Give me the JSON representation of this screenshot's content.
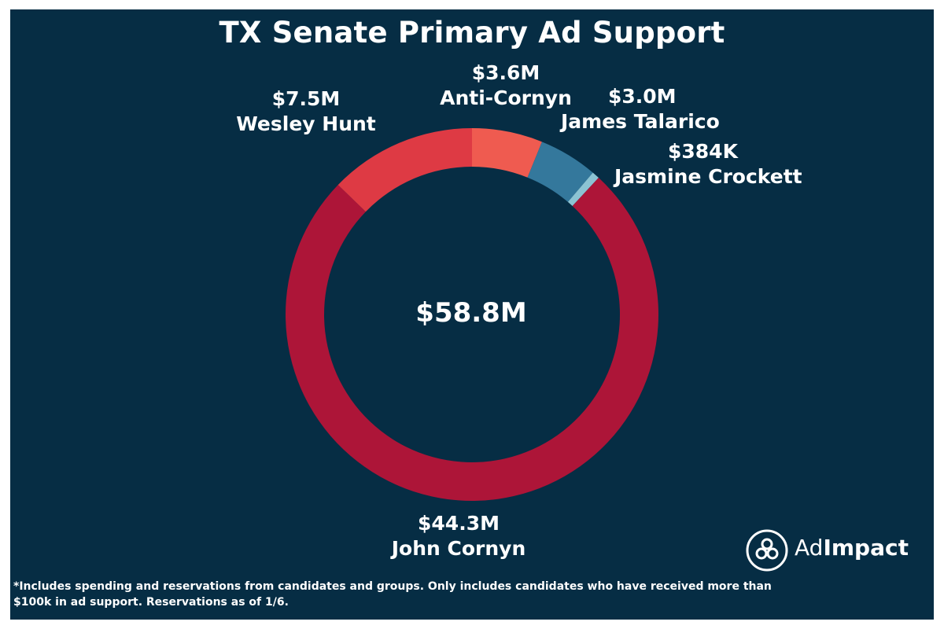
{
  "chart_data": {
    "type": "pie",
    "title": "TX Senate Primary Ad Support",
    "center_label": "$58.8M",
    "slices": [
      {
        "name": "Anti-Cornyn",
        "value": 3.6,
        "label": "$3.6M",
        "color": "#ef5b50"
      },
      {
        "name": "James Talarico",
        "value": 3.0,
        "label": "$3.0M",
        "color": "#34789c"
      },
      {
        "name": "Jasmine Crockett",
        "value": 0.384,
        "label": "$384K",
        "color": "#8cc3d3"
      },
      {
        "name": "John Cornyn",
        "value": 44.3,
        "label": "$44.3M",
        "color": "#ad1538"
      },
      {
        "name": "Wesley Hunt",
        "value": 7.5,
        "label": "$7.5M",
        "color": "#de3a44"
      }
    ]
  },
  "footnote": "*Includes spending and reservations from candidates and groups. Only includes candidates who have received more than $100k in ad support. Reservations as of 1/6.",
  "logo": {
    "prefix": "Ad",
    "bold": "Impact"
  },
  "colors": {
    "background": "#062d44",
    "text": "#ffffff"
  }
}
